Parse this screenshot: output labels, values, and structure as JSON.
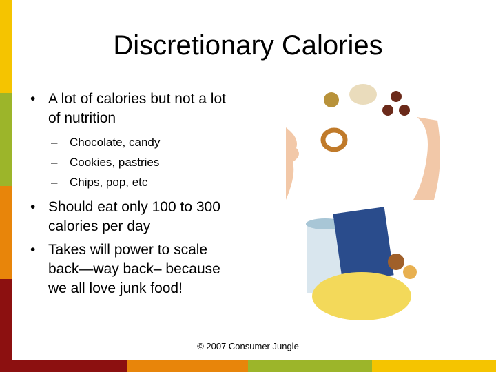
{
  "header": {
    "title": "Discretionary Calories"
  },
  "bullets": [
    {
      "text": "A lot of calories but not a lot of nutrition",
      "sub": [
        "Chocolate, candy",
        "Cookies, pastries",
        "Chips, pop, etc"
      ]
    },
    {
      "text": "Should eat only 100 to 300 calories per day",
      "sub": []
    },
    {
      "text": "Takes will power to scale back—way back– because we all love junk food!",
      "sub": []
    }
  ],
  "footer": {
    "text": "© 2007 Consumer Jungle"
  }
}
